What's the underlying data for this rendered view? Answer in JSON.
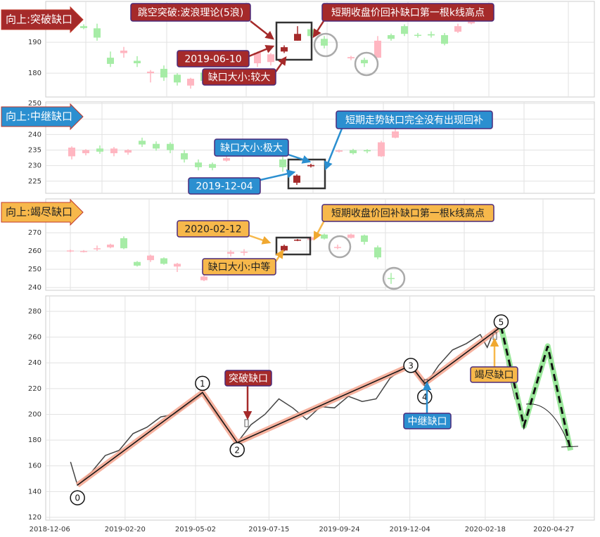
{
  "chart_data": [
    {
      "type": "candlestick",
      "title": "向上:突破缺口",
      "categories": [
        null,
        null,
        null,
        null,
        null,
        null,
        null,
        null,
        null,
        null,
        null,
        null,
        null,
        null,
        null,
        null,
        null,
        null,
        null,
        null,
        null,
        null,
        null,
        null,
        null,
        null,
        null,
        null,
        null,
        null,
        null
      ],
      "open": [
        194,
        195.2,
        194.5,
        185,
        186.5,
        184,
        180,
        181.4,
        179.5,
        176,
        180.2,
        null,
        null,
        null,
        183.2,
        183.6,
        187,
        190.5,
        194.2,
        191.1,
        null,
        184.8,
        184.3,
        185,
        192.3,
        195.2,
        192.4,
        192.6,
        192.3,
        193.4,
        196.1
      ],
      "close": [
        195.7,
        194.6,
        191.5,
        183,
        187.3,
        183.2,
        180.5,
        178.6,
        177,
        178.2,
        177.5,
        null,
        null,
        null,
        186.6,
        186.1,
        188.4,
        192.7,
        192,
        188.9,
        null,
        185.2,
        183.2,
        190.5,
        191.1,
        192.7,
        192.1,
        192.2,
        189.5,
        195.2,
        197.3
      ],
      "high": [
        196.5,
        195.8,
        196,
        187,
        188.5,
        185.5,
        181,
        182.5,
        180,
        178.5,
        181,
        null,
        null,
        null,
        187,
        186.5,
        189,
        195.2,
        194.8,
        192,
        null,
        185.6,
        185,
        192,
        192.8,
        195.8,
        193,
        193.5,
        193,
        196,
        198
      ],
      "low": [
        193.5,
        194.2,
        190.5,
        182,
        185,
        182,
        177,
        177.5,
        176,
        175,
        177,
        null,
        null,
        null,
        182,
        182.5,
        186.5,
        190.5,
        191.5,
        188,
        null,
        184.2,
        182,
        185,
        190.5,
        192,
        191.5,
        191.5,
        189,
        193,
        195.8
      ],
      "up_color": "#ffb6c1",
      "down_color": "#a6eca6",
      "gap_color": "#a52a2a",
      "gap_candles": [
        16,
        17
      ],
      "ylim": [
        172.3,
        203.2
      ],
      "yticks": [
        180,
        190
      ],
      "grid": true,
      "annotations": [
        "跳空突破:波浪理论(5浪)",
        "短期收盘价回补缺口第一根k线高点",
        "2019-06-10",
        "缺口大小:较大"
      ]
    },
    {
      "type": "candlestick",
      "title": "向上:中继缺口",
      "categories": [
        null,
        null,
        null,
        null,
        null,
        null,
        null,
        null,
        null,
        null,
        null,
        null,
        null,
        null,
        null,
        null,
        null,
        null,
        null,
        null,
        null,
        null,
        null,
        null
      ],
      "open": [
        233,
        234,
        235.5,
        234,
        234.2,
        238,
        237,
        237,
        234,
        231,
        230.5,
        231.6,
        null,
        null,
        null,
        232,
        224.5,
        229.8,
        null,
        234.5,
        235,
        235,
        233,
        239
      ],
      "close": [
        235.8,
        235,
        234.5,
        235.5,
        235,
        236.8,
        235.5,
        235,
        232,
        229.5,
        229.3,
        232.4,
        null,
        null,
        null,
        229.5,
        226.8,
        230.2,
        null,
        234.9,
        234,
        234.6,
        237.5,
        241
      ],
      "high": [
        236.2,
        235.3,
        236.5,
        236,
        235.3,
        239,
        237.8,
        237.5,
        235,
        232,
        231,
        233,
        null,
        null,
        null,
        234,
        227.2,
        230.6,
        null,
        235.2,
        235.4,
        235.3,
        238,
        242.2
      ],
      "low": [
        232,
        233.3,
        233.8,
        233,
        233.5,
        236,
        234.8,
        234,
        231,
        228.5,
        228.5,
        231.3,
        null,
        null,
        null,
        228,
        223.8,
        229.4,
        null,
        234.2,
        233.6,
        234,
        232.8,
        238.8
      ],
      "up_color": "#ffb6c1",
      "down_color": "#a6eca6",
      "gap_color": "#a52a2a",
      "gap_candles": [
        16,
        17
      ],
      "ylim": [
        221.1,
        250.5
      ],
      "yticks": [
        225,
        230,
        235,
        240,
        245,
        250
      ],
      "grid": true,
      "annotations": [
        "短期走势缺口完全没有出现回补",
        "缺口大小:极大",
        "2019-12-04"
      ]
    },
    {
      "type": "candlestick",
      "title": "向上:竭尽缺口",
      "categories": [
        null,
        null,
        null,
        null,
        null,
        null,
        null,
        null,
        null,
        null,
        null,
        null,
        null,
        null,
        null,
        null,
        null,
        null,
        null,
        null,
        null,
        null,
        null,
        null,
        null
      ],
      "open": [
        259.8,
        259.6,
        261,
        262,
        267,
        254,
        255,
        256,
        251.5,
        null,
        244,
        null,
        258.5,
        259,
        null,
        null,
        260.3,
        265.8,
        266,
        269,
        261.8,
        267.2,
        268.5,
        262,
        245.2
      ],
      "close": [
        260.3,
        260,
        261.5,
        263.5,
        261.5,
        252,
        257.5,
        253,
        253,
        null,
        246,
        null,
        259.5,
        259.6,
        null,
        null,
        262.8,
        266.2,
        267.5,
        266.8,
        262.2,
        269,
        265,
        256.5,
        244.8
      ],
      "high": [
        260.8,
        260.5,
        263,
        264,
        268,
        254.5,
        258,
        256.5,
        253.5,
        null,
        247,
        null,
        260.5,
        261,
        null,
        null,
        263.5,
        266.6,
        268,
        269.5,
        263.5,
        269.5,
        269,
        263,
        248
      ],
      "low": [
        259.3,
        259.2,
        260,
        261.5,
        261,
        251.5,
        254,
        252.5,
        248.5,
        null,
        243.5,
        null,
        257,
        257.5,
        null,
        null,
        259.8,
        265.4,
        265.5,
        266.3,
        261,
        266.8,
        263.5,
        255.5,
        242
      ],
      "up_color": "#ffb6c1",
      "down_color": "#a6eca6",
      "gap_color": "#a52a2a",
      "gap_candles": [
        16,
        17
      ],
      "ylim": [
        238.5,
        288.5
      ],
      "yticks": [
        240,
        250,
        260,
        270
      ],
      "grid": true,
      "annotations": [
        "短期收盘价回补缺口第一根k线高点",
        "2020-02-12",
        "缺口大小:中等"
      ]
    },
    {
      "type": "line",
      "x": [
        "2018-12-27",
        "2019-01-03",
        "2019-01-17",
        "2019-01-31",
        "2019-02-14",
        "2019-02-28",
        "2019-03-14",
        "2019-03-28",
        "2019-04-11",
        "2019-04-25",
        "2019-05-09",
        "2019-05-23",
        "2019-06-06",
        "2019-06-13",
        "2019-06-27",
        "2019-07-11",
        "2019-07-25",
        "2019-08-08",
        "2019-08-22",
        "2019-09-05",
        "2019-09-19",
        "2019-10-03",
        "2019-10-17",
        "2019-10-31",
        "2019-11-14",
        "2019-11-28",
        "2019-12-05",
        "2019-12-12",
        "2019-12-19",
        "2020-01-02",
        "2020-01-16",
        "2020-01-30",
        "2020-02-13",
        "2020-02-20",
        "2020-02-27",
        "2020-03-05",
        "2020-03-12",
        "2020-03-19",
        "2020-03-26"
      ],
      "values": [
        163,
        145,
        155,
        168,
        172,
        185,
        190,
        198,
        200,
        208,
        216,
        200,
        186,
        178,
        192,
        200,
        212,
        205,
        196,
        206,
        205,
        214,
        210,
        212,
        228,
        236,
        238,
        230,
        222,
        238,
        250,
        255,
        262,
        252,
        265,
        268,
        235,
        212,
        205
      ],
      "color": "#444444",
      "waves": {
        "x": [
          "2019-01-03",
          "2019-05-09",
          "2019-06-13",
          "2019-12-05",
          "2019-12-19",
          "2020-03-05"
        ],
        "values": [
          145,
          217,
          178,
          238,
          224,
          268
        ],
        "labels": [
          "0",
          "1",
          "2",
          "3",
          "4",
          "5"
        ],
        "color": "#f4a58e"
      },
      "projection": {
        "x": [
          "2020-03-05",
          "2020-03-28",
          "2020-04-21",
          "2020-05-14"
        ],
        "values": [
          268,
          191,
          253,
          172
        ],
        "color": "#9be89b"
      },
      "xlim": [
        "2018-12-02",
        "2020-06-07"
      ],
      "xticks": [
        "2018-12-06",
        "2019-02-20",
        "2019-05-02",
        "2019-07-15",
        "2019-09-24",
        "2019-12-04",
        "2020-02-18",
        "2020-04-27"
      ],
      "ylim": [
        117.8,
        292
      ],
      "yticks": [
        120,
        140,
        160,
        180,
        200,
        220,
        240,
        260,
        280
      ],
      "grid": true,
      "annotations": [
        "突破缺口",
        "中继缺口",
        "竭尽缺口"
      ]
    }
  ]
}
